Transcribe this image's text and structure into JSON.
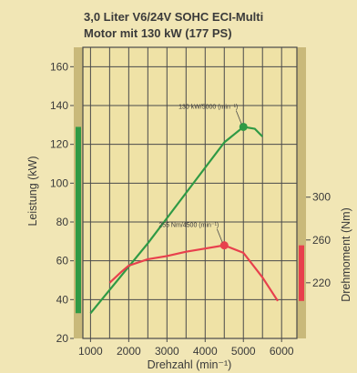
{
  "chart_data": {
    "type": "line",
    "title": "3,0 Liter V6/24V SOHC ECI-Multi",
    "subtitle": "Motor mit 130 kW (177 PS)",
    "xlabel": "Drehzahl (min⁻¹)",
    "ylabel_left": "Leistung (kW)",
    "ylabel_right": "Drehmoment (Nm)",
    "xlim": [
      800,
      6400
    ],
    "ylim_left": [
      20,
      170
    ],
    "ylim_right": [
      168,
      440
    ],
    "x_ticks": [
      1000,
      2000,
      3000,
      4000,
      5000,
      6000
    ],
    "y_ticks_left": [
      20,
      40,
      60,
      80,
      100,
      120,
      140,
      160
    ],
    "y_ticks_right": [
      220,
      260,
      300
    ],
    "grid": true,
    "colors": {
      "background": "#f1e6b5",
      "plot_background": "#efe2a6",
      "grid": "#4a4a4a",
      "power": "#2f9a45",
      "torque": "#e8404d",
      "side_band": "#c9b97a"
    },
    "series": [
      {
        "axis": "left",
        "x": [
          1000,
          1500,
          2000,
          2500,
          3000,
          3500,
          4000,
          4500,
          5000,
          5300,
          5500
        ],
        "y": [
          33,
          45,
          57,
          69,
          82,
          95,
          108,
          121,
          129,
          128,
          124
        ]
      },
      {
        "axis": "right",
        "x": [
          1500,
          1800,
          2000,
          2500,
          3000,
          3500,
          4000,
          4500,
          5000,
          5500,
          5900
        ],
        "y": [
          220,
          230,
          236,
          242,
          245,
          249,
          252,
          255,
          248,
          225,
          203
        ]
      }
    ],
    "annotations": [
      {
        "text": "130 kW/5000 (min⁻¹)",
        "x": 5000,
        "y": 129,
        "axis": "left",
        "color": "#2f9a45"
      },
      {
        "text": "255 Nm/4500 (min⁻¹)",
        "x": 4500,
        "y": 255,
        "axis": "right",
        "color": "#e8404d"
      }
    ]
  }
}
